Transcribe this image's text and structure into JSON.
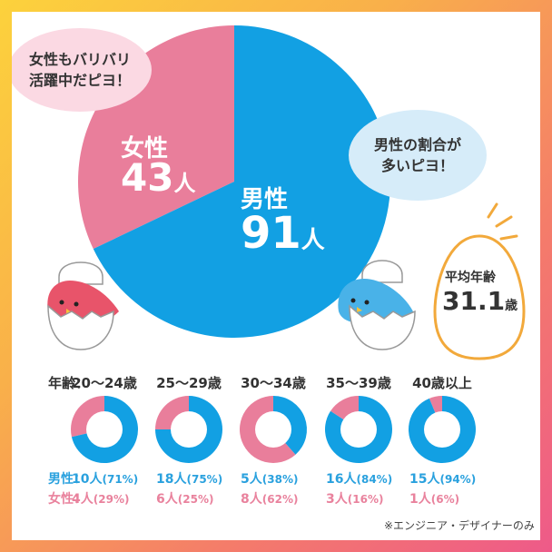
{
  "colors": {
    "male": "#12a0e3",
    "female": "#e97e9b",
    "bubble_pink": "#fbd9e3",
    "bubble_blue": "#d6ecf9",
    "egg": "#f2a93b"
  },
  "bubbles": {
    "female": {
      "line1": "女性もバリバリ",
      "line2": "活躍中だピヨ！"
    },
    "male": {
      "line1": "男性の割合が",
      "line2": "多いピヨ！"
    }
  },
  "average_age": {
    "label": "平均年齢",
    "value": "31.1",
    "unit": "歳"
  },
  "chart_data": [
    {
      "type": "pie",
      "labels": [
        "男性",
        "女性"
      ],
      "values": [
        91,
        43
      ],
      "unit": "人"
    },
    {
      "type": "pie",
      "row_label": "年齢：",
      "row_labels": [
        "男性：",
        "女性："
      ],
      "categories": [
        "20〜24歳",
        "25〜29歳",
        "30〜34歳",
        "35〜39歳",
        "40歳以上"
      ],
      "series": [
        {
          "name": "男性",
          "values": [
            10,
            18,
            5,
            16,
            15
          ],
          "percents": [
            71,
            75,
            38,
            84,
            94
          ]
        },
        {
          "name": "女性",
          "values": [
            4,
            6,
            8,
            3,
            1
          ],
          "percents": [
            29,
            25,
            62,
            16,
            6
          ]
        }
      ],
      "unit": "人"
    }
  ],
  "footnote": "※エンジニア・デザイナーのみ"
}
